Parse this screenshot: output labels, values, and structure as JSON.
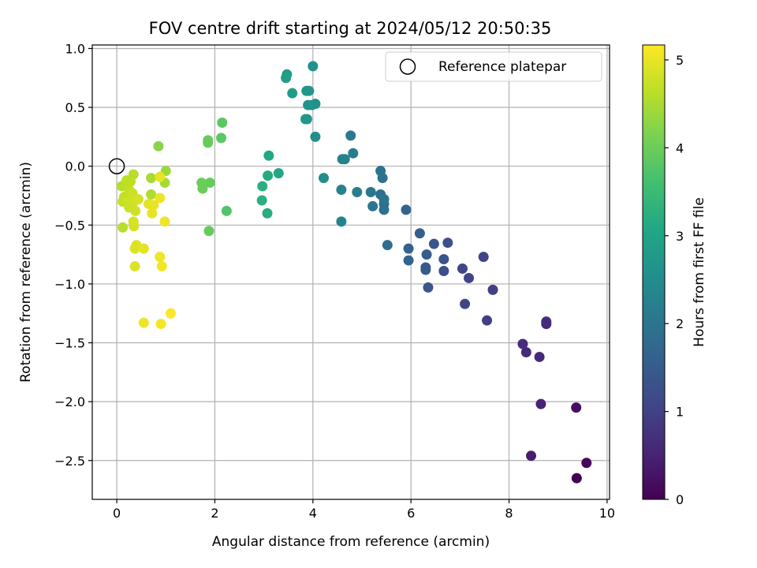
{
  "chart_data": {
    "type": "scatter",
    "title": "FOV centre drift starting at 2024/05/12 20:50:35",
    "xlabel": "Angular distance from reference (arcmin)",
    "ylabel": "Rotation from reference (arcmin)",
    "xlim": [
      -0.5,
      10.05
    ],
    "ylim": [
      -2.83,
      1.03
    ],
    "xticks": [
      "0",
      "2",
      "4",
      "6",
      "8",
      "10"
    ],
    "yticks": [
      "1.0",
      "0.5",
      "0.0",
      "−0.5",
      "−1.0",
      "−1.5",
      "−2.0",
      "−2.5"
    ],
    "grid": true,
    "legend": {
      "label": "Reference platepar",
      "placement": "top-right"
    },
    "reference_point": {
      "x": 0,
      "y": 0
    },
    "colorbar": {
      "label": "Hours from first FF file",
      "range": [
        0,
        5.17
      ],
      "ticks": [
        "0",
        "1",
        "2",
        "3",
        "4",
        "5"
      ],
      "colormap": "viridis"
    },
    "points": [
      {
        "x": 9.38,
        "y": -2.65,
        "h": 0.0
      },
      {
        "x": 9.58,
        "y": -2.52,
        "h": 0.1
      },
      {
        "x": 9.37,
        "y": -2.05,
        "h": 0.2
      },
      {
        "x": 8.45,
        "y": -2.46,
        "h": 0.4
      },
      {
        "x": 8.65,
        "y": -2.02,
        "h": 0.5
      },
      {
        "x": 8.62,
        "y": -1.62,
        "h": 0.6
      },
      {
        "x": 8.35,
        "y": -1.58,
        "h": 0.6
      },
      {
        "x": 8.28,
        "y": -1.51,
        "h": 0.65
      },
      {
        "x": 8.76,
        "y": -1.34,
        "h": 0.6
      },
      {
        "x": 8.76,
        "y": -1.32,
        "h": 0.65
      },
      {
        "x": 7.55,
        "y": -1.31,
        "h": 0.95
      },
      {
        "x": 7.67,
        "y": -1.05,
        "h": 0.95
      },
      {
        "x": 7.1,
        "y": -1.17,
        "h": 1.05
      },
      {
        "x": 7.18,
        "y": -0.95,
        "h": 1.05
      },
      {
        "x": 7.05,
        "y": -0.87,
        "h": 1.1
      },
      {
        "x": 7.48,
        "y": -0.77,
        "h": 1.05
      },
      {
        "x": 6.67,
        "y": -0.89,
        "h": 1.25
      },
      {
        "x": 6.67,
        "y": -0.79,
        "h": 1.3
      },
      {
        "x": 6.75,
        "y": -0.65,
        "h": 1.25
      },
      {
        "x": 6.47,
        "y": -0.66,
        "h": 1.35
      },
      {
        "x": 6.35,
        "y": -1.03,
        "h": 1.4
      },
      {
        "x": 6.3,
        "y": -0.86,
        "h": 1.45
      },
      {
        "x": 6.3,
        "y": -0.88,
        "h": 1.45
      },
      {
        "x": 6.32,
        "y": -0.75,
        "h": 1.5
      },
      {
        "x": 6.18,
        "y": -0.57,
        "h": 1.55
      },
      {
        "x": 5.95,
        "y": -0.7,
        "h": 1.6
      },
      {
        "x": 5.95,
        "y": -0.8,
        "h": 1.65
      },
      {
        "x": 5.9,
        "y": -0.37,
        "h": 1.65
      },
      {
        "x": 5.52,
        "y": -0.67,
        "h": 1.85
      },
      {
        "x": 5.45,
        "y": -0.32,
        "h": 1.85
      },
      {
        "x": 5.45,
        "y": -0.37,
        "h": 1.9
      },
      {
        "x": 5.38,
        "y": -0.24,
        "h": 1.9
      },
      {
        "x": 5.42,
        "y": -0.1,
        "h": 1.95
      },
      {
        "x": 5.38,
        "y": -0.04,
        "h": 1.95
      },
      {
        "x": 5.45,
        "y": -0.28,
        "h": 2.0
      },
      {
        "x": 5.22,
        "y": -0.34,
        "h": 2.0
      },
      {
        "x": 5.18,
        "y": -0.22,
        "h": 2.05
      },
      {
        "x": 4.77,
        "y": 0.26,
        "h": 2.1
      },
      {
        "x": 4.82,
        "y": 0.11,
        "h": 2.15
      },
      {
        "x": 4.65,
        "y": 0.06,
        "h": 2.2
      },
      {
        "x": 4.6,
        "y": 0.06,
        "h": 2.25
      },
      {
        "x": 4.9,
        "y": -0.22,
        "h": 2.25
      },
      {
        "x": 4.58,
        "y": -0.2,
        "h": 2.3
      },
      {
        "x": 4.58,
        "y": -0.47,
        "h": 2.3
      },
      {
        "x": 4.22,
        "y": -0.1,
        "h": 2.5
      },
      {
        "x": 4.05,
        "y": 0.25,
        "h": 2.55
      },
      {
        "x": 4.05,
        "y": 0.53,
        "h": 2.6
      },
      {
        "x": 3.98,
        "y": 0.52,
        "h": 2.6
      },
      {
        "x": 3.9,
        "y": 0.52,
        "h": 2.65
      },
      {
        "x": 3.87,
        "y": 0.64,
        "h": 2.7
      },
      {
        "x": 3.92,
        "y": 0.64,
        "h": 2.7
      },
      {
        "x": 3.88,
        "y": 0.4,
        "h": 2.7
      },
      {
        "x": 3.85,
        "y": 0.4,
        "h": 2.75
      },
      {
        "x": 4.0,
        "y": 0.85,
        "h": 2.6
      },
      {
        "x": 3.47,
        "y": 0.78,
        "h": 2.85
      },
      {
        "x": 3.45,
        "y": 0.75,
        "h": 2.85
      },
      {
        "x": 3.58,
        "y": 0.62,
        "h": 2.8
      },
      {
        "x": 3.3,
        "y": -0.06,
        "h": 3.05
      },
      {
        "x": 3.1,
        "y": 0.09,
        "h": 3.1
      },
      {
        "x": 3.08,
        "y": -0.08,
        "h": 3.15
      },
      {
        "x": 3.07,
        "y": -0.4,
        "h": 3.2
      },
      {
        "x": 2.97,
        "y": -0.17,
        "h": 3.25
      },
      {
        "x": 2.96,
        "y": -0.29,
        "h": 3.25
      },
      {
        "x": 2.24,
        "y": -0.38,
        "h": 3.75
      },
      {
        "x": 2.15,
        "y": 0.37,
        "h": 3.85
      },
      {
        "x": 2.13,
        "y": 0.24,
        "h": 3.85
      },
      {
        "x": 1.86,
        "y": 0.22,
        "h": 3.95
      },
      {
        "x": 1.86,
        "y": 0.2,
        "h": 3.95
      },
      {
        "x": 1.88,
        "y": -0.55,
        "h": 3.95
      },
      {
        "x": 1.9,
        "y": -0.14,
        "h": 3.95
      },
      {
        "x": 1.73,
        "y": -0.14,
        "h": 4.0
      },
      {
        "x": 1.75,
        "y": -0.19,
        "h": 4.0
      },
      {
        "x": 0.85,
        "y": 0.17,
        "h": 4.25
      },
      {
        "x": 1.0,
        "y": -0.04,
        "h": 4.4
      },
      {
        "x": 0.98,
        "y": -0.14,
        "h": 4.45
      },
      {
        "x": 0.7,
        "y": -0.1,
        "h": 4.5
      },
      {
        "x": 0.7,
        "y": -0.24,
        "h": 4.55
      },
      {
        "x": 0.34,
        "y": -0.07,
        "h": 4.6
      },
      {
        "x": 0.1,
        "y": -0.17,
        "h": 4.6
      },
      {
        "x": 0.28,
        "y": -0.13,
        "h": 4.65
      },
      {
        "x": 0.2,
        "y": -0.12,
        "h": 4.65
      },
      {
        "x": 0.25,
        "y": -0.2,
        "h": 4.7
      },
      {
        "x": 0.15,
        "y": -0.26,
        "h": 4.7
      },
      {
        "x": 0.12,
        "y": -0.3,
        "h": 4.7
      },
      {
        "x": 0.32,
        "y": -0.23,
        "h": 4.75
      },
      {
        "x": 0.25,
        "y": -0.35,
        "h": 4.75
      },
      {
        "x": 0.22,
        "y": -0.3,
        "h": 4.75
      },
      {
        "x": 0.35,
        "y": -0.3,
        "h": 4.8
      },
      {
        "x": 0.38,
        "y": -0.38,
        "h": 4.8
      },
      {
        "x": 0.34,
        "y": -0.47,
        "h": 4.85
      },
      {
        "x": 0.35,
        "y": -0.51,
        "h": 4.85
      },
      {
        "x": 0.12,
        "y": -0.52,
        "h": 4.6
      },
      {
        "x": 0.44,
        "y": -0.28,
        "h": 4.85
      },
      {
        "x": 0.4,
        "y": -0.67,
        "h": 4.9
      },
      {
        "x": 0.37,
        "y": -0.7,
        "h": 4.9
      },
      {
        "x": 0.37,
        "y": -0.85,
        "h": 4.9
      },
      {
        "x": 0.55,
        "y": -0.7,
        "h": 4.95
      },
      {
        "x": 0.55,
        "y": -1.33,
        "h": 5.05
      },
      {
        "x": 0.65,
        "y": -0.32,
        "h": 4.95
      },
      {
        "x": 0.72,
        "y": -0.4,
        "h": 5.0
      },
      {
        "x": 0.75,
        "y": -0.33,
        "h": 5.0
      },
      {
        "x": 0.88,
        "y": -0.09,
        "h": 5.0
      },
      {
        "x": 0.88,
        "y": -0.27,
        "h": 5.05
      },
      {
        "x": 0.98,
        "y": -0.47,
        "h": 5.05
      },
      {
        "x": 0.88,
        "y": -0.77,
        "h": 5.05
      },
      {
        "x": 0.92,
        "y": -0.85,
        "h": 5.1
      },
      {
        "x": 0.9,
        "y": -1.34,
        "h": 5.1
      },
      {
        "x": 1.1,
        "y": -1.25,
        "h": 5.15
      }
    ]
  }
}
